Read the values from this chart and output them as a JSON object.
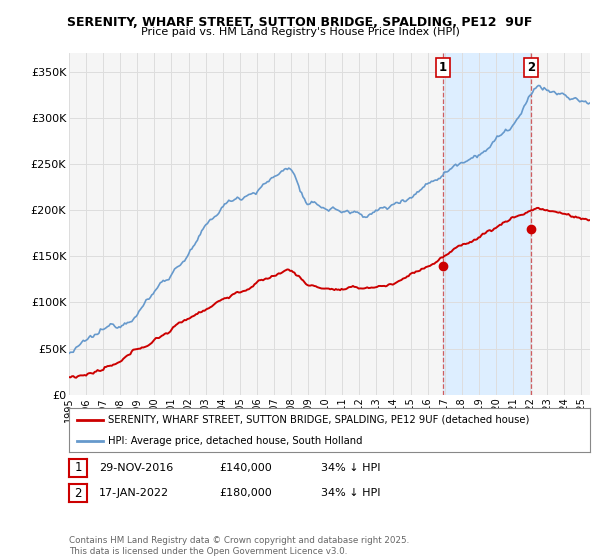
{
  "title": "SERENITY, WHARF STREET, SUTTON BRIDGE, SPALDING, PE12  9UF",
  "subtitle": "Price paid vs. HM Land Registry's House Price Index (HPI)",
  "ylabel_ticks": [
    "£0",
    "£50K",
    "£100K",
    "£150K",
    "£200K",
    "£250K",
    "£300K",
    "£350K"
  ],
  "ytick_values": [
    0,
    50000,
    100000,
    150000,
    200000,
    250000,
    300000,
    350000
  ],
  "ylim": [
    0,
    370000
  ],
  "xlim_start": 1995.0,
  "xlim_end": 2025.5,
  "legend_line1": "SERENITY, WHARF STREET, SUTTON BRIDGE, SPALDING, PE12 9UF (detached house)",
  "legend_line2": "HPI: Average price, detached house, South Holland",
  "transaction1_date": "29-NOV-2016",
  "transaction1_price": "£140,000",
  "transaction1_hpi": "34% ↓ HPI",
  "transaction1_x": 2016.91,
  "transaction1_y": 140000,
  "transaction2_date": "17-JAN-2022",
  "transaction2_price": "£180,000",
  "transaction2_hpi": "34% ↓ HPI",
  "transaction2_x": 2022.04,
  "transaction2_y": 180000,
  "red_color": "#cc0000",
  "blue_color": "#6699cc",
  "span_color": "#ddeeff",
  "footnote": "Contains HM Land Registry data © Crown copyright and database right 2025.\nThis data is licensed under the Open Government Licence v3.0.",
  "background_color": "#ffffff",
  "plot_bg_color": "#f5f5f5",
  "grid_color": "#dddddd"
}
